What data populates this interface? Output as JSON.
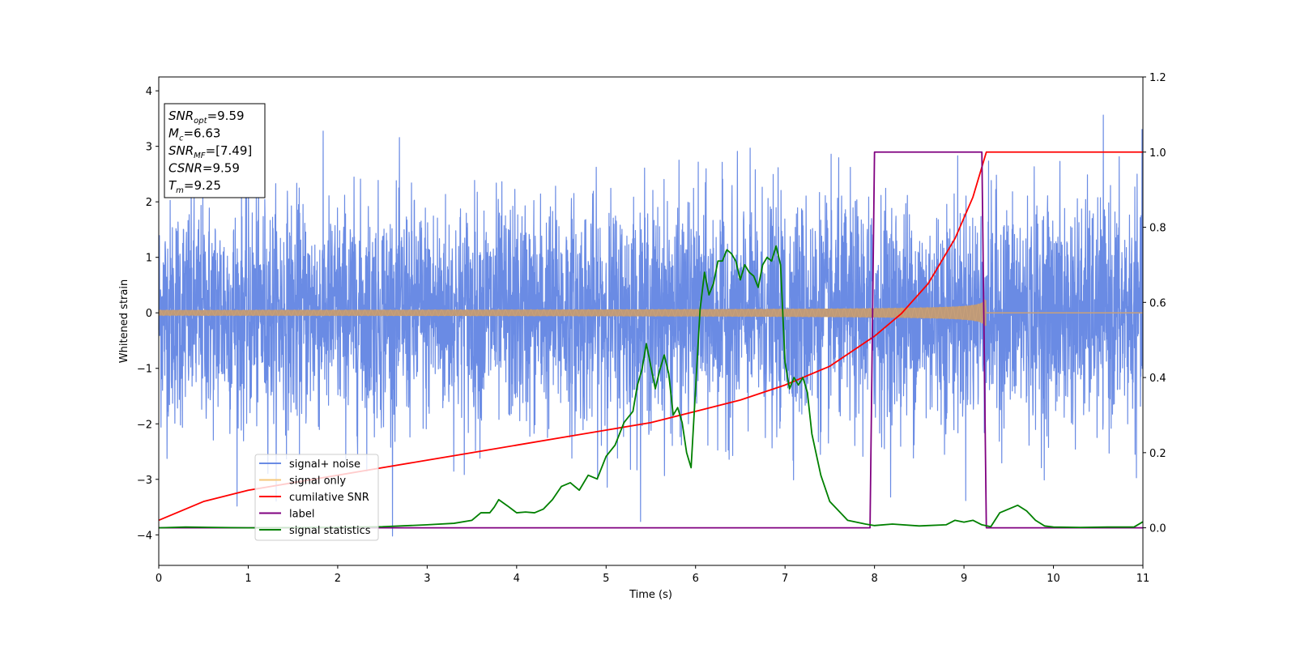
{
  "chart_data": {
    "type": "line",
    "xlabel": "Time (s)",
    "ylabel": "Whitened strain",
    "xlim": [
      0,
      11
    ],
    "ylim_left": [
      -4.55,
      4.25
    ],
    "ylim_right": [
      -0.1,
      1.2
    ],
    "x_ticks": [
      0,
      1,
      2,
      3,
      4,
      5,
      6,
      7,
      8,
      9,
      10,
      11
    ],
    "y_ticks_left": [
      -4,
      -3,
      -2,
      -1,
      0,
      1,
      2,
      3,
      4
    ],
    "y_ticks_right": [
      0.0,
      0.2,
      0.4,
      0.6,
      0.8,
      1.0,
      1.2
    ],
    "y_tick_labels_left": [
      "−4",
      "−3",
      "−2",
      "−1",
      "0",
      "1",
      "2",
      "3",
      "4"
    ],
    "y_tick_labels_right": [
      "0.0",
      "0.2",
      "0.4",
      "0.6",
      "0.8",
      "1.0",
      "1.2"
    ],
    "grid": false,
    "legend_position": "lower-left",
    "annotation_box": {
      "lines": [
        {
          "base": "SNR",
          "sub": "opt",
          "value": "=9.59"
        },
        {
          "base": "M",
          "sub": "c",
          "value": "=6.63"
        },
        {
          "base": "SNR",
          "sub": "MF",
          "value": "=[7.49]"
        },
        {
          "base": "CSNR",
          "sub": "",
          "value": "=9.59"
        },
        {
          "base": "T",
          "sub": "m",
          "value": "=9.25"
        }
      ]
    },
    "series": [
      {
        "name": "signal+ noise",
        "axis": "left",
        "color": "#6a8be4",
        "style": "noise",
        "noise_std": 1.0,
        "visible_range": [
          -4.15,
          3.85
        ]
      },
      {
        "name": "signal only",
        "axis": "left",
        "color": "#f5c77a",
        "style": "chirp",
        "t_merge": 9.25,
        "amplitude_at_start": 0.05,
        "amplitude_at_merge": 1.1
      },
      {
        "name": "cumilative SNR",
        "axis": "right",
        "color": "#ff0000",
        "x": [
          0,
          0.5,
          1,
          1.5,
          2,
          2.5,
          3,
          3.5,
          4,
          4.5,
          5,
          5.5,
          6,
          6.5,
          7,
          7.5,
          8,
          8.3,
          8.6,
          8.9,
          9.1,
          9.25,
          9.3,
          10,
          11
        ],
        "values": [
          0.02,
          0.07,
          0.1,
          0.12,
          0.14,
          0.16,
          0.18,
          0.2,
          0.22,
          0.24,
          0.26,
          0.28,
          0.31,
          0.34,
          0.38,
          0.43,
          0.51,
          0.57,
          0.65,
          0.77,
          0.88,
          1.0,
          1.0,
          1.0,
          1.0
        ]
      },
      {
        "name": "label",
        "axis": "right",
        "color": "#800080",
        "x": [
          0,
          7.95,
          8.0,
          9.2,
          9.25,
          11
        ],
        "values": [
          0,
          0,
          1,
          1,
          0,
          0
        ]
      },
      {
        "name": "signal statistics",
        "axis": "right",
        "color": "#008000",
        "x": [
          0,
          0.3,
          1,
          2,
          2.5,
          3,
          3.3,
          3.5,
          3.6,
          3.7,
          3.75,
          3.8,
          3.9,
          4.0,
          4.1,
          4.2,
          4.3,
          4.4,
          4.5,
          4.6,
          4.7,
          4.8,
          4.9,
          5.0,
          5.1,
          5.2,
          5.3,
          5.35,
          5.4,
          5.45,
          5.5,
          5.55,
          5.6,
          5.65,
          5.7,
          5.75,
          5.8,
          5.85,
          5.9,
          5.95,
          6.0,
          6.05,
          6.1,
          6.15,
          6.2,
          6.25,
          6.3,
          6.35,
          6.4,
          6.45,
          6.5,
          6.55,
          6.6,
          6.65,
          6.7,
          6.75,
          6.8,
          6.85,
          6.9,
          6.95,
          7.0,
          7.05,
          7.1,
          7.15,
          7.2,
          7.25,
          7.3,
          7.4,
          7.5,
          7.7,
          7.9,
          8.0,
          8.2,
          8.5,
          8.8,
          8.9,
          9.0,
          9.1,
          9.2,
          9.3,
          9.4,
          9.5,
          9.6,
          9.7,
          9.8,
          9.9,
          10.0,
          10.3,
          10.6,
          10.9,
          11.0
        ],
        "values": [
          0.0,
          0.002,
          0.0,
          0.001,
          0.003,
          0.008,
          0.012,
          0.02,
          0.04,
          0.04,
          0.055,
          0.075,
          0.058,
          0.04,
          0.042,
          0.04,
          0.05,
          0.075,
          0.11,
          0.12,
          0.1,
          0.14,
          0.13,
          0.19,
          0.22,
          0.28,
          0.31,
          0.38,
          0.42,
          0.49,
          0.43,
          0.37,
          0.42,
          0.46,
          0.41,
          0.3,
          0.32,
          0.28,
          0.2,
          0.16,
          0.37,
          0.58,
          0.68,
          0.62,
          0.65,
          0.71,
          0.71,
          0.74,
          0.73,
          0.71,
          0.66,
          0.7,
          0.68,
          0.67,
          0.64,
          0.7,
          0.72,
          0.71,
          0.75,
          0.7,
          0.44,
          0.37,
          0.4,
          0.38,
          0.4,
          0.36,
          0.25,
          0.14,
          0.07,
          0.02,
          0.01,
          0.006,
          0.01,
          0.005,
          0.008,
          0.02,
          0.015,
          0.02,
          0.008,
          0.003,
          0.04,
          0.05,
          0.06,
          0.045,
          0.02,
          0.005,
          0.002,
          0.001,
          0.002,
          0.002,
          0.016
        ]
      }
    ]
  }
}
